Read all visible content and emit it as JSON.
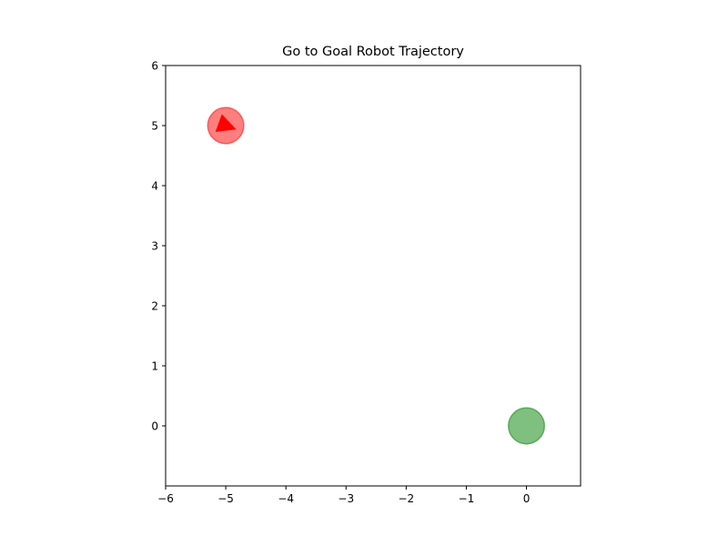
{
  "chart_data": {
    "type": "scatter",
    "title": "Go to Goal Robot Trajectory",
    "xlabel": "",
    "ylabel": "",
    "xlim": [
      -6,
      0.9
    ],
    "ylim": [
      -1,
      6
    ],
    "xticks": [
      -6,
      -5,
      -4,
      -3,
      -2,
      -1,
      0
    ],
    "yticks": [
      0,
      1,
      2,
      3,
      4,
      5,
      6
    ],
    "xtick_labels": [
      "−6",
      "−5",
      "−4",
      "−3",
      "−2",
      "−1",
      "0"
    ],
    "ytick_labels": [
      "0",
      "1",
      "2",
      "3",
      "4",
      "5",
      "6"
    ],
    "grid": false,
    "robot": {
      "x": -5,
      "y": 5,
      "radius": 0.3,
      "heading_deg": -20,
      "color": "#ff0000",
      "alpha": 0.5
    },
    "goal": {
      "x": 0,
      "y": 0,
      "radius": 0.3,
      "color": "#008000",
      "alpha": 0.5
    }
  }
}
